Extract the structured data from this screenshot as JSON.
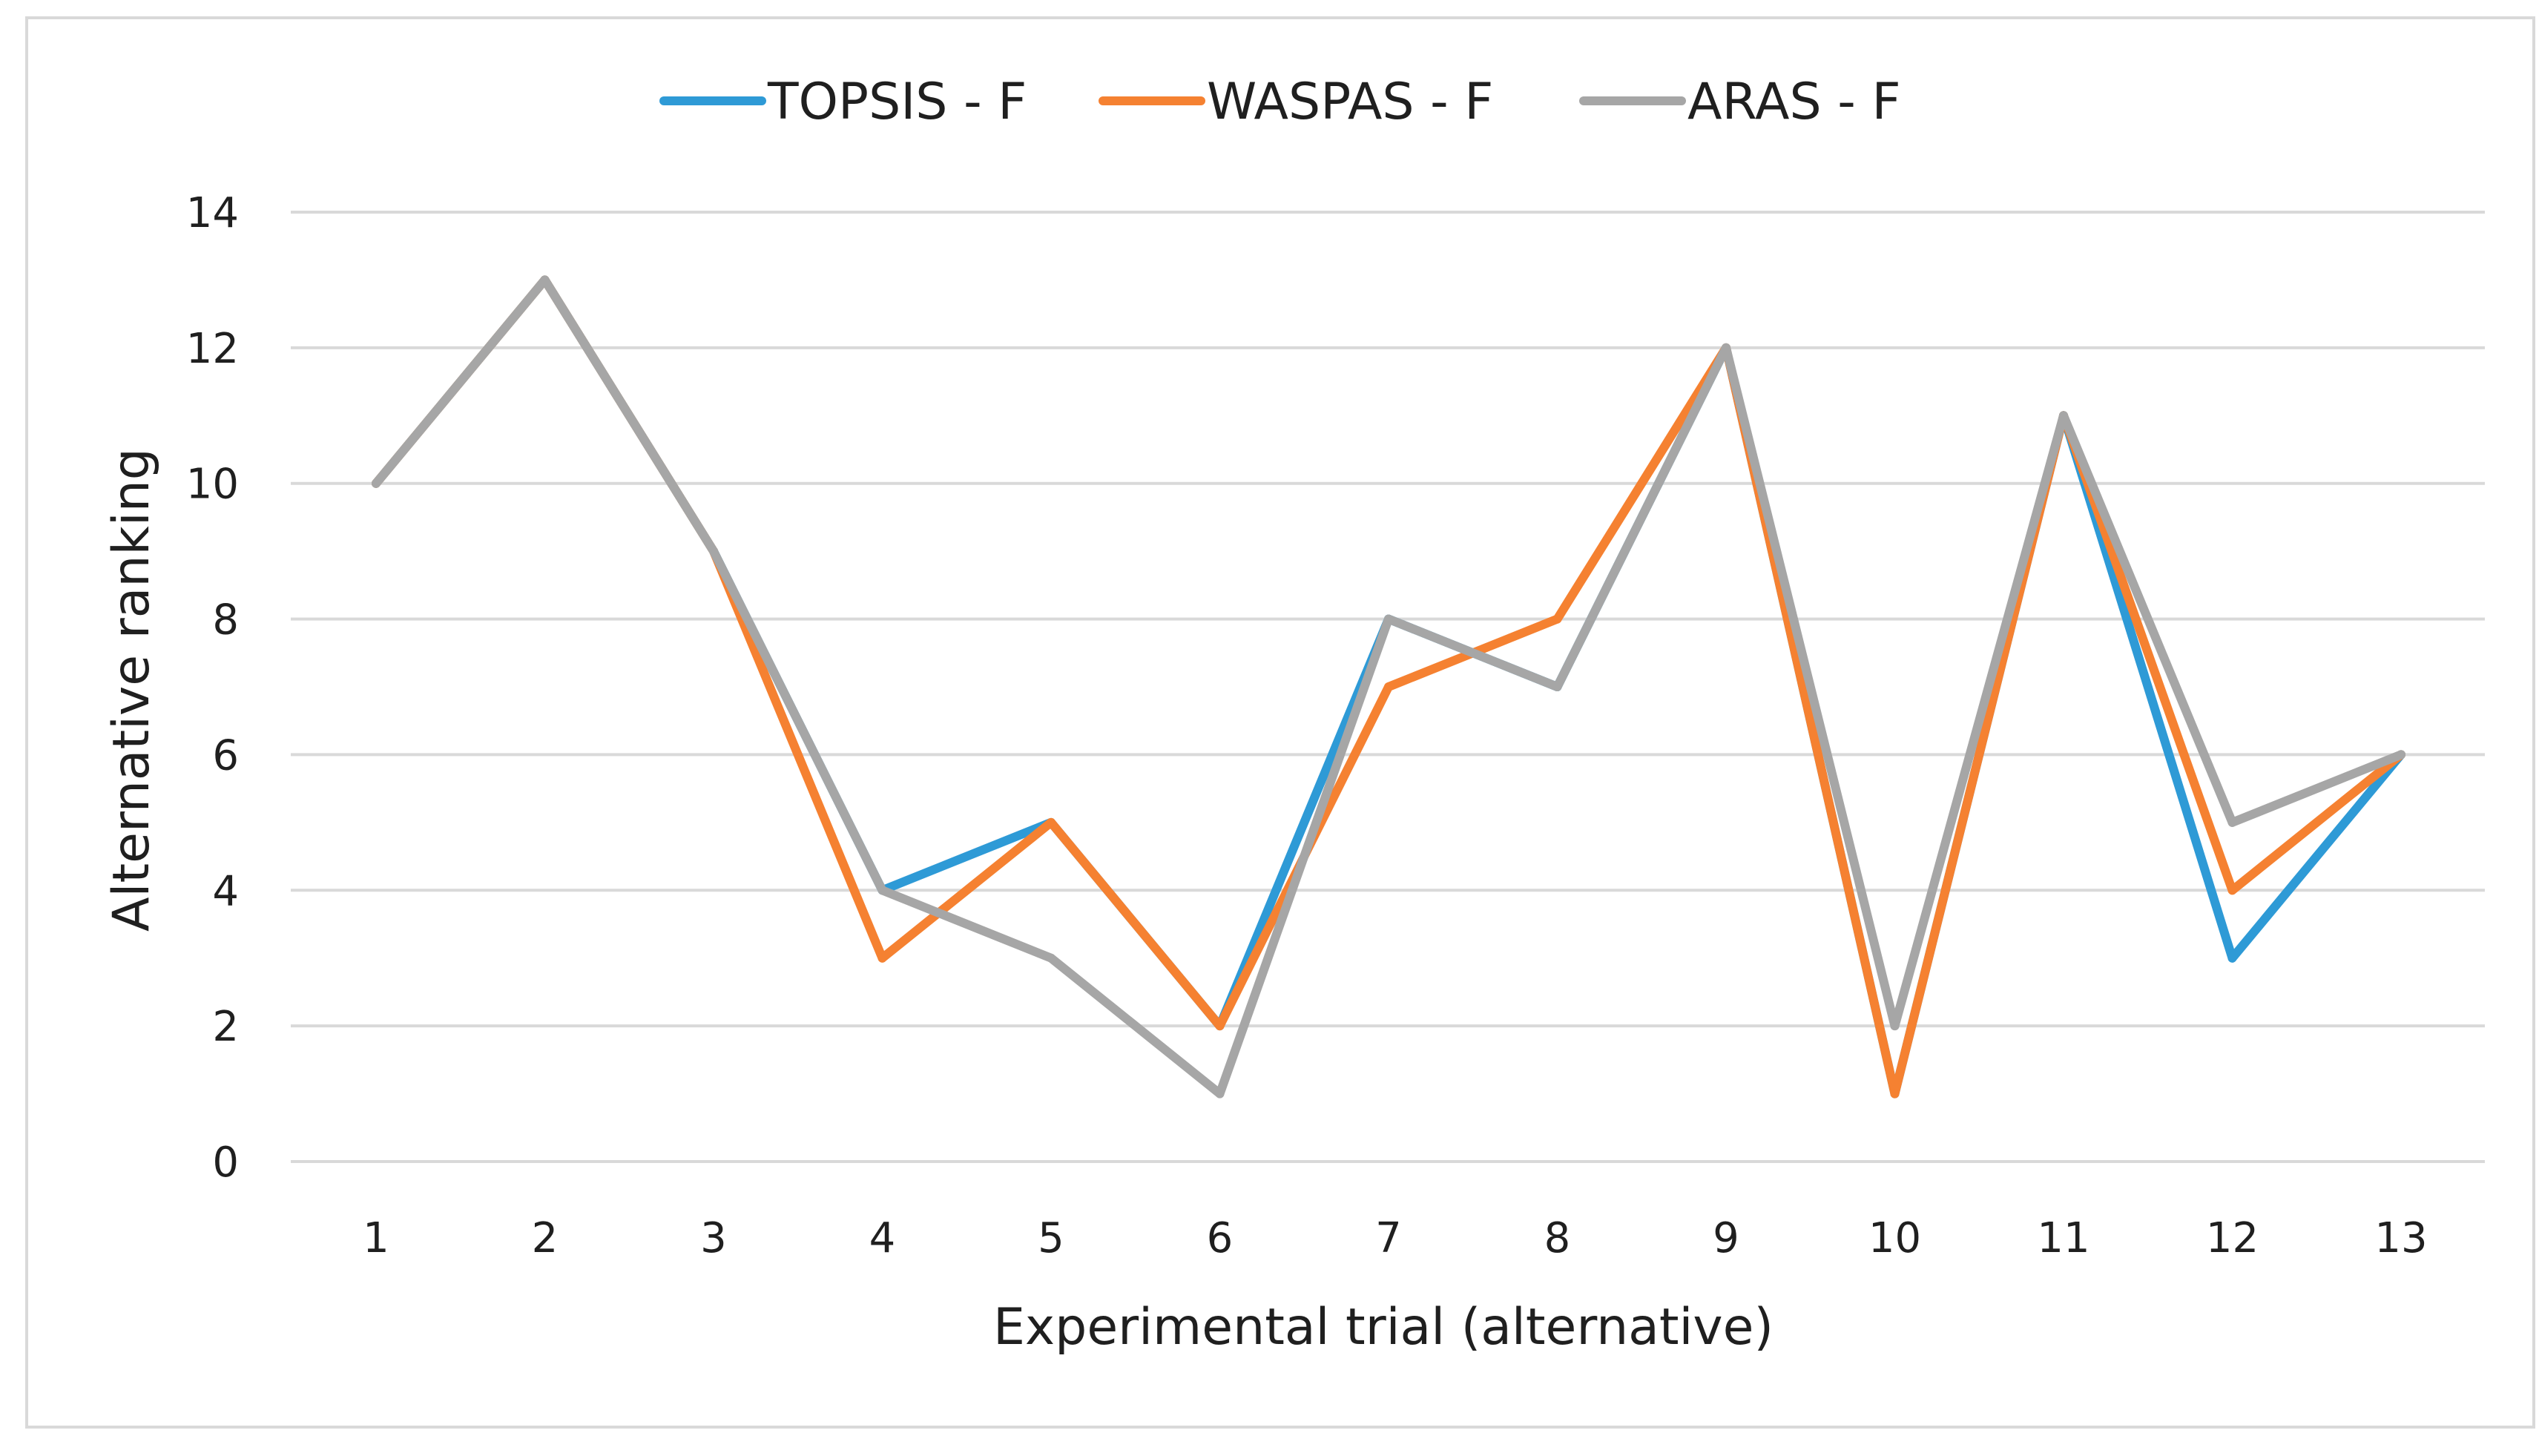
{
  "chart_data": {
    "type": "line",
    "title": "",
    "xlabel": "Experimental trial (alternative)",
    "ylabel": "Alternative ranking",
    "categories": [
      "1",
      "2",
      "3",
      "4",
      "5",
      "6",
      "7",
      "8",
      "9",
      "10",
      "11",
      "12",
      "13"
    ],
    "ylim": [
      0,
      14
    ],
    "yticks": [
      0,
      2,
      4,
      6,
      8,
      10,
      12,
      14
    ],
    "grid": true,
    "legend_position": "top-center",
    "series": [
      {
        "name": "TOPSIS - F",
        "color": "#2E9AD6",
        "values": [
          10,
          13,
          9,
          4,
          5,
          2,
          8,
          7,
          12,
          1,
          11,
          3,
          6
        ]
      },
      {
        "name": "WASPAS - F",
        "color": "#F58131",
        "values": [
          10,
          13,
          9,
          3,
          5,
          2,
          7,
          8,
          12,
          1,
          11,
          4,
          6
        ]
      },
      {
        "name": "ARAS - F",
        "color": "#A6A6A6",
        "values": [
          10,
          13,
          9,
          4,
          3,
          1,
          8,
          7,
          12,
          2,
          11,
          5,
          6
        ]
      }
    ]
  }
}
